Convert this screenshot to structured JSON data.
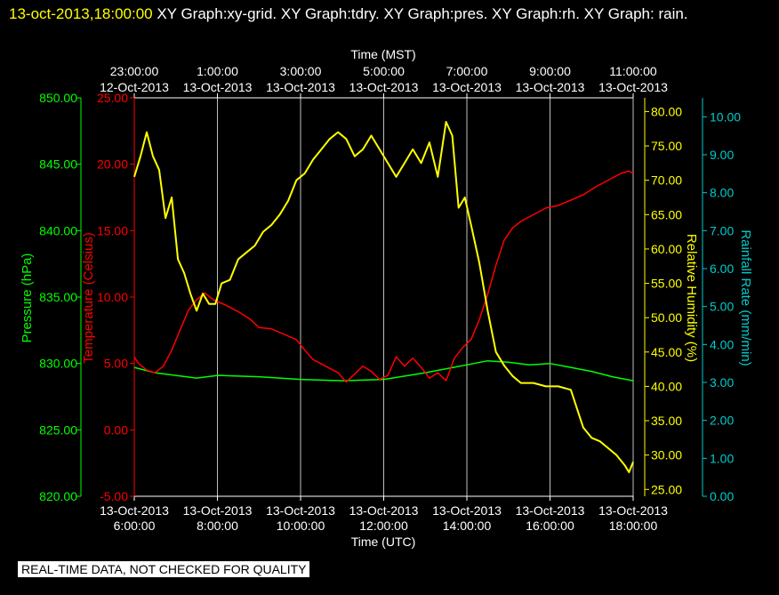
{
  "header": {
    "timestamp": "13-oct-2013,18:00:00",
    "graph_list": "  XY Graph:xy-grid.  XY Graph:tdry.  XY Graph:pres.  XY Graph:rh.  XY Graph: rain."
  },
  "footer": {
    "notice": "REAL-TIME DATA, NOT CHECKED FOR QUALITY"
  },
  "colors": {
    "background": "#000000",
    "pressure": "#00ff00",
    "temperature": "#ff0000",
    "humidity": "#ffff00",
    "rain": "#00cccc",
    "grid": "#ffffff",
    "axis_text": "#ffffff"
  },
  "chart_data": {
    "type": "line",
    "grid": true,
    "x_bottom": {
      "label": "Time (UTC)",
      "tick_hours": [
        6,
        8,
        10,
        12,
        14,
        16,
        18
      ],
      "tick_labels": [
        [
          "13-Oct-2013",
          "6:00:00"
        ],
        [
          "13-Oct-2013",
          "8:00:00"
        ],
        [
          "13-Oct-2013",
          "10:00:00"
        ],
        [
          "13-Oct-2013",
          "12:00:00"
        ],
        [
          "13-Oct-2013",
          "14:00:00"
        ],
        [
          "13-Oct-2013",
          "16:00:00"
        ],
        [
          "13-Oct-2013",
          "18:00:00"
        ]
      ],
      "range_hours": [
        6,
        18
      ]
    },
    "x_top": {
      "label": "Time (MST)",
      "tick_labels": [
        [
          "23:00:00",
          "12-Oct-2013"
        ],
        [
          "1:00:00",
          "13-Oct-2013"
        ],
        [
          "3:00:00",
          "13-Oct-2013"
        ],
        [
          "5:00:00",
          "13-Oct-2013"
        ],
        [
          "7:00:00",
          "13-Oct-2013"
        ],
        [
          "9:00:00",
          "13-Oct-2013"
        ],
        [
          "11:00:00",
          "13-Oct-2013"
        ]
      ]
    },
    "axes": {
      "pressure": {
        "label": "Pressure (hPa)",
        "range": [
          820,
          850
        ],
        "ticks": [
          "820.00",
          "825.00",
          "830.00",
          "835.00",
          "840.00",
          "845.00",
          "850.00"
        ]
      },
      "temperature": {
        "label": "Temperature (Celsius)",
        "range": [
          -5,
          25
        ],
        "ticks": [
          "-5.00",
          "0.00",
          "5.00",
          "10.00",
          "15.00",
          "20.00",
          "25.00"
        ]
      },
      "humidity": {
        "label": "Relative Humidity (%)",
        "range": [
          24,
          82
        ],
        "ticks": [
          "25.00",
          "30.00",
          "35.00",
          "40.00",
          "45.00",
          "50.00",
          "55.00",
          "60.00",
          "65.00",
          "70.00",
          "75.00",
          "80.00"
        ]
      },
      "rain": {
        "label": "Rainfall Rate (mm/min)",
        "range": [
          0,
          10.5
        ],
        "ticks": [
          "0.00",
          "1.00",
          "2.00",
          "3.00",
          "4.00",
          "5.00",
          "6.00",
          "7.00",
          "8.00",
          "9.00",
          "10.00"
        ]
      }
    },
    "series": [
      {
        "axis": "pressure",
        "x": [
          6.0,
          6.5,
          7.0,
          7.5,
          8.0,
          9.0,
          10.0,
          11.0,
          12.0,
          13.0,
          14.0,
          14.5,
          15.0,
          15.5,
          16.0,
          16.5,
          17.0,
          17.5,
          18.0
        ],
        "y": [
          829.7,
          829.3,
          829.1,
          828.9,
          829.1,
          829.0,
          828.8,
          828.7,
          828.8,
          829.3,
          829.9,
          830.2,
          830.1,
          829.9,
          830.0,
          829.7,
          829.4,
          829.0,
          828.7
        ]
      },
      {
        "axis": "temperature",
        "x": [
          6.0,
          6.1,
          6.3,
          6.5,
          6.7,
          6.9,
          7.1,
          7.3,
          7.5,
          7.7,
          7.9,
          8.2,
          8.5,
          8.8,
          9.0,
          9.3,
          9.6,
          9.9,
          10.1,
          10.3,
          10.6,
          10.9,
          11.1,
          11.3,
          11.5,
          11.7,
          11.9,
          12.1,
          12.3,
          12.5,
          12.7,
          12.9,
          13.1,
          13.3,
          13.5,
          13.7,
          13.9,
          14.1,
          14.3,
          14.5,
          14.7,
          14.9,
          15.1,
          15.3,
          15.6,
          15.9,
          16.2,
          16.5,
          16.8,
          17.1,
          17.4,
          17.7,
          17.9,
          18.0
        ],
        "y": [
          5.5,
          5.0,
          4.5,
          4.3,
          4.8,
          6.0,
          7.5,
          9.0,
          9.8,
          10.3,
          9.8,
          9.4,
          8.9,
          8.3,
          7.7,
          7.6,
          7.2,
          6.8,
          6.0,
          5.3,
          4.8,
          4.3,
          3.6,
          4.2,
          4.8,
          4.4,
          3.8,
          4.1,
          5.5,
          4.8,
          5.4,
          4.7,
          3.9,
          4.3,
          3.7,
          5.4,
          6.2,
          6.8,
          8.3,
          10.2,
          12.4,
          14.3,
          15.2,
          15.7,
          16.2,
          16.7,
          16.9,
          17.3,
          17.7,
          18.3,
          18.8,
          19.3,
          19.5,
          19.3
        ]
      },
      {
        "axis": "humidity",
        "x": [
          6.0,
          6.15,
          6.3,
          6.45,
          6.6,
          6.75,
          6.9,
          7.05,
          7.2,
          7.35,
          7.5,
          7.65,
          7.8,
          7.95,
          8.1,
          8.3,
          8.5,
          8.7,
          8.9,
          9.1,
          9.3,
          9.5,
          9.7,
          9.9,
          10.1,
          10.3,
          10.5,
          10.7,
          10.9,
          11.1,
          11.3,
          11.5,
          11.7,
          11.9,
          12.1,
          12.3,
          12.5,
          12.7,
          12.9,
          13.1,
          13.3,
          13.5,
          13.65,
          13.8,
          13.95,
          14.1,
          14.3,
          14.5,
          14.7,
          14.9,
          15.1,
          15.3,
          15.6,
          15.9,
          16.2,
          16.5,
          16.8,
          17.0,
          17.2,
          17.4,
          17.6,
          17.8,
          17.9,
          18.0
        ],
        "y": [
          70.5,
          73.5,
          77.0,
          73.5,
          71.5,
          64.5,
          67.5,
          58.5,
          56.5,
          53.5,
          51.0,
          53.5,
          52.0,
          52.0,
          55.0,
          55.5,
          58.5,
          59.5,
          60.5,
          62.5,
          63.5,
          65.0,
          67.0,
          70.0,
          71.0,
          73.0,
          74.5,
          76.0,
          77.0,
          76.0,
          73.5,
          74.5,
          76.5,
          74.5,
          72.5,
          70.5,
          72.5,
          74.5,
          72.5,
          75.5,
          70.5,
          78.5,
          76.5,
          66.0,
          67.5,
          63.5,
          58.0,
          51.0,
          45.0,
          43.0,
          41.5,
          40.5,
          40.5,
          40.0,
          40.0,
          39.5,
          34.0,
          32.5,
          32.0,
          31.0,
          30.0,
          28.5,
          27.5,
          29.0
        ]
      }
    ]
  }
}
